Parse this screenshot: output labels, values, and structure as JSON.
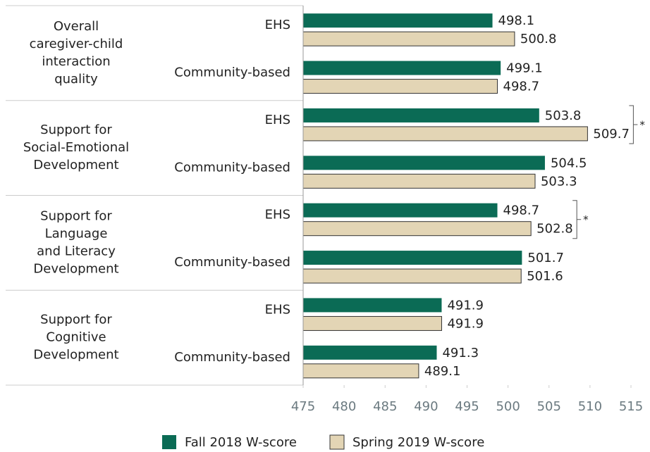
{
  "chart_data": {
    "type": "bar",
    "orientation": "horizontal",
    "group_labels": [
      [
        "Overall",
        "caregiver-child",
        "interaction",
        "quality"
      ],
      [
        "Support for",
        "Social-Emotional",
        "Development"
      ],
      [
        "Support for",
        "Language",
        "and Literacy",
        "Development"
      ],
      [
        "Support for",
        "Cognitive",
        "Development"
      ]
    ],
    "categories": [
      "EHS",
      "Community-based",
      "EHS",
      "Community-based",
      "EHS",
      "Community-based",
      "EHS",
      "Community-based"
    ],
    "series": [
      {
        "name": "Fall 2018 W-score",
        "color": "#0b6b55",
        "values": [
          498.1,
          499.1,
          503.8,
          504.5,
          498.7,
          501.7,
          491.9,
          491.3
        ]
      },
      {
        "name": "Spring 2019 W-score",
        "color": "#e3d5b5",
        "values": [
          500.8,
          498.7,
          509.7,
          503.3,
          502.8,
          501.6,
          491.9,
          489.1
        ]
      }
    ],
    "xlim": [
      475,
      515
    ],
    "xticks": [
      475,
      480,
      485,
      490,
      495,
      500,
      505,
      510,
      515
    ],
    "significance": [
      {
        "category": 2,
        "label": "*"
      },
      {
        "category": 4,
        "label": "*"
      }
    ]
  }
}
